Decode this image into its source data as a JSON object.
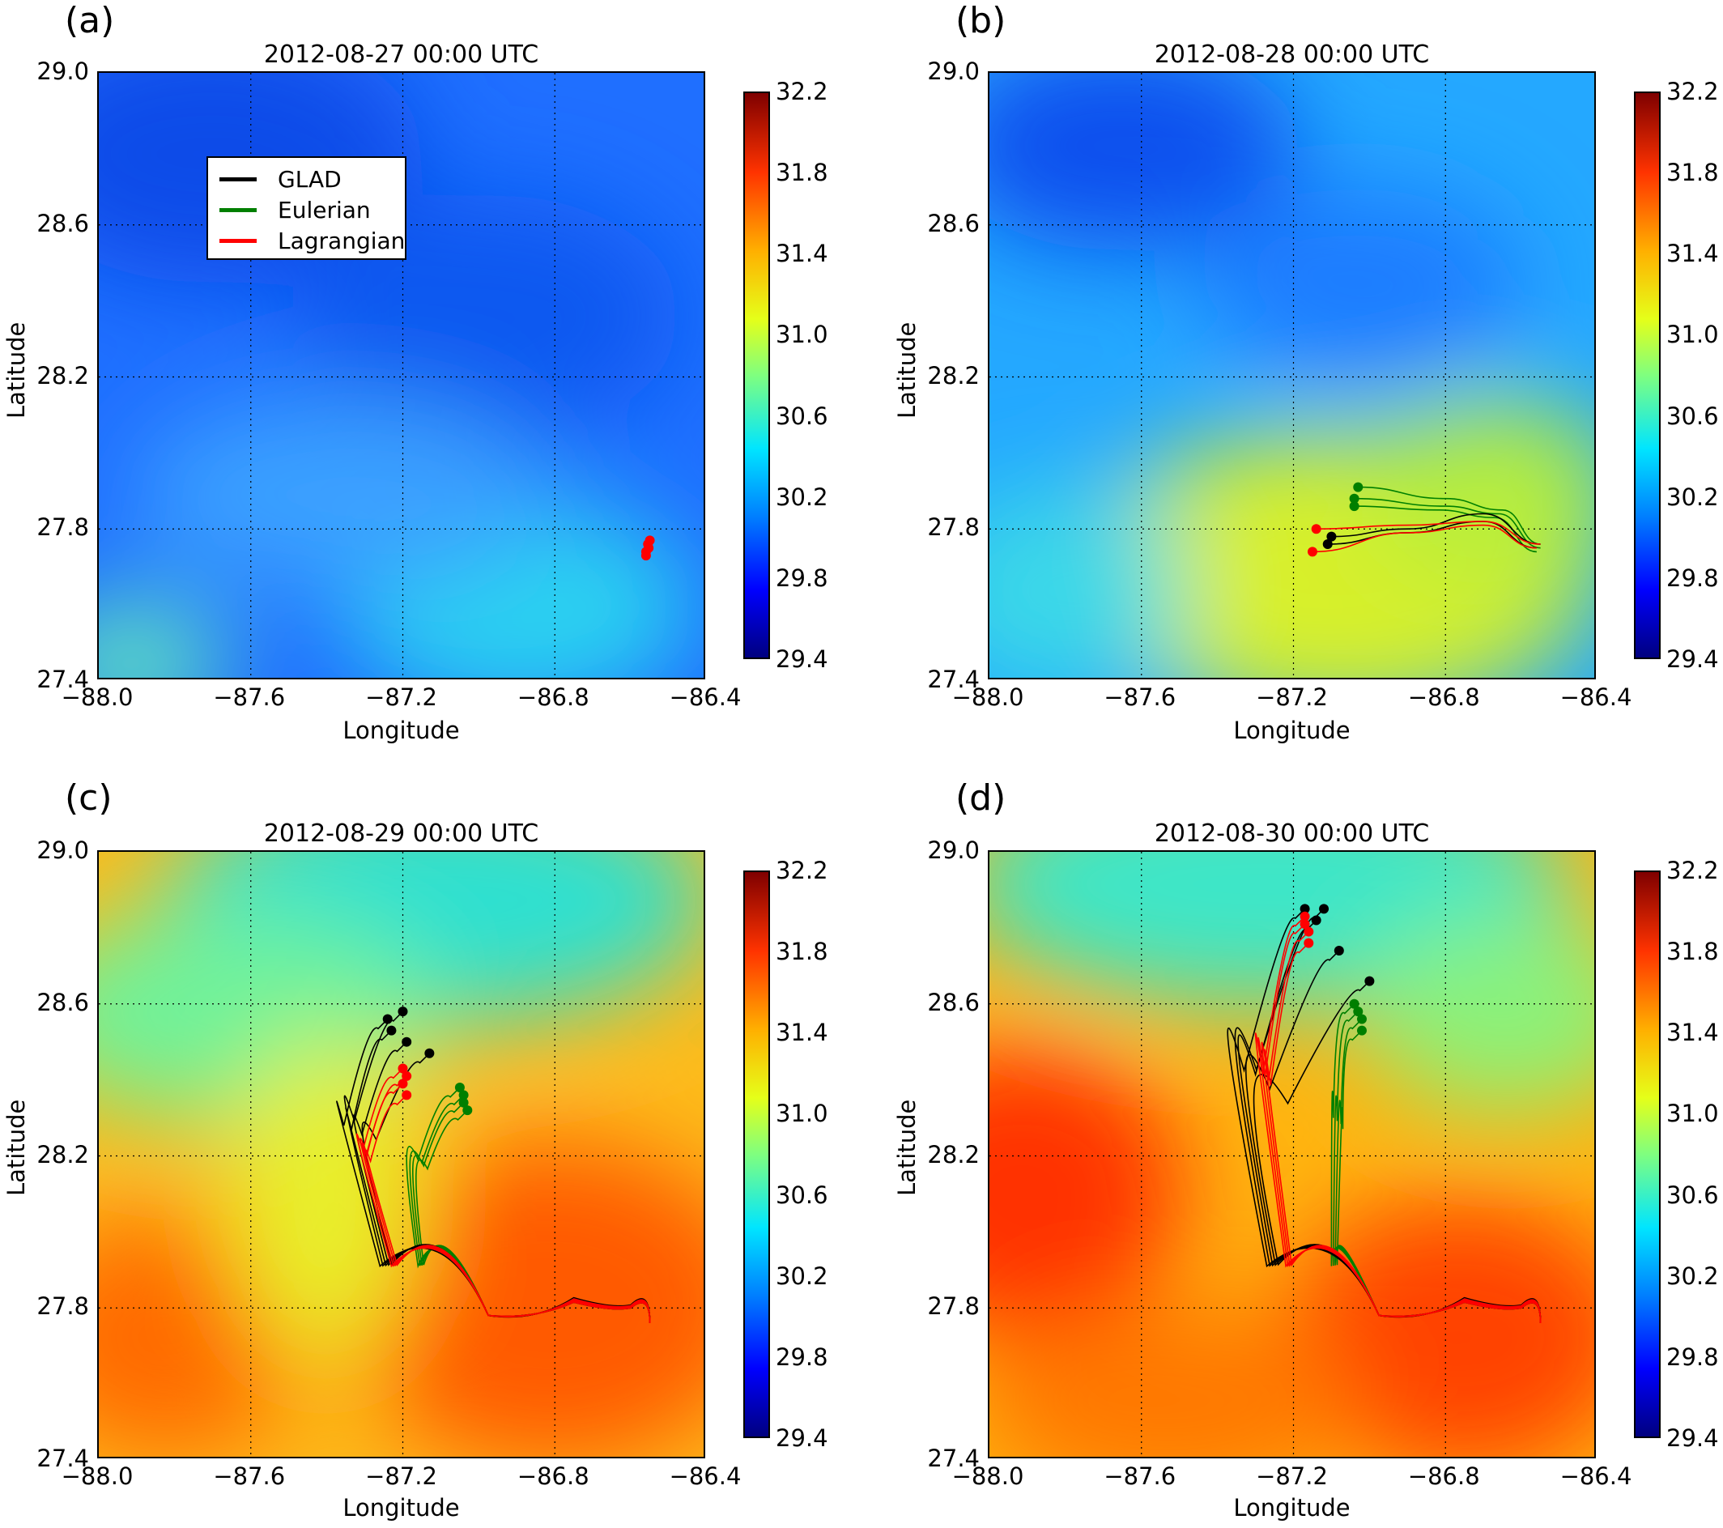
{
  "colorbar_ticks": [
    "32.2",
    "31.8",
    "31.4",
    "31.0",
    "30.6",
    "30.2",
    "29.8",
    "29.4"
  ],
  "legend": {
    "glad": "GLAD",
    "eulerian": "Eulerian",
    "lagrangian": "Lagrangian",
    "colors": {
      "glad": "#000000",
      "eulerian": "#007f00",
      "lagrangian": "#ff0000"
    }
  },
  "chart_data": [
    {
      "type": "heatmap",
      "panel_label": "(a)",
      "title": "2012-08-27 00:00 UTC",
      "xlabel": "Longitude",
      "ylabel": "Latitude",
      "xlim": [
        -88.0,
        -86.4
      ],
      "ylim": [
        27.4,
        29.0
      ],
      "xticks": [
        "−88.0",
        "−87.6",
        "−87.2",
        "−86.8",
        "−86.4"
      ],
      "yticks": [
        "29.0",
        "28.6",
        "28.2",
        "27.8",
        "27.4"
      ],
      "colorbar_range": [
        29.4,
        32.2
      ],
      "grid": true,
      "legend_position": "top-left",
      "trajectories": {
        "glad": [],
        "eulerian": [],
        "lagrangian_endpoints": [
          [
            -86.56,
            27.74
          ],
          [
            -86.555,
            27.76
          ],
          [
            -86.55,
            27.77
          ],
          [
            -86.56,
            27.73
          ],
          [
            -86.553,
            27.75
          ]
        ]
      }
    },
    {
      "type": "heatmap",
      "panel_label": "(b)",
      "title": "2012-08-28 00:00 UTC",
      "xlabel": "Longitude",
      "ylabel": "Latitude",
      "xlim": [
        -88.0,
        -86.4
      ],
      "ylim": [
        27.4,
        29.0
      ],
      "xticks": [
        "−88.0",
        "−87.6",
        "−87.2",
        "−86.8",
        "−86.4"
      ],
      "yticks": [
        "29.0",
        "28.6",
        "28.2",
        "27.8",
        "27.4"
      ],
      "colorbar_range": [
        29.4,
        32.2
      ],
      "grid": true,
      "trajectories": {
        "glad": [
          [
            [
              -86.55,
              27.76
            ],
            [
              -86.7,
              27.84
            ],
            [
              -86.9,
              27.8
            ],
            [
              -87.1,
              27.78
            ]
          ],
          [
            [
              -86.56,
              27.75
            ],
            [
              -86.7,
              27.82
            ],
            [
              -86.9,
              27.79
            ],
            [
              -87.11,
              27.76
            ]
          ]
        ],
        "eulerian": [
          [
            [
              -86.55,
              27.76
            ],
            [
              -86.65,
              27.85
            ],
            [
              -86.8,
              27.88
            ],
            [
              -87.03,
              27.91
            ]
          ],
          [
            [
              -86.55,
              27.75
            ],
            [
              -86.66,
              27.84
            ],
            [
              -86.8,
              27.86
            ],
            [
              -87.04,
              27.88
            ]
          ],
          [
            [
              -86.56,
              27.74
            ],
            [
              -86.67,
              27.83
            ],
            [
              -86.82,
              27.85
            ],
            [
              -87.04,
              27.86
            ]
          ]
        ],
        "lagrangian": [
          [
            [
              -86.55,
              27.76
            ],
            [
              -86.7,
              27.82
            ],
            [
              -86.9,
              27.81
            ],
            [
              -87.14,
              27.8
            ]
          ],
          [
            [
              -86.56,
              27.75
            ],
            [
              -86.7,
              27.81
            ],
            [
              -86.9,
              27.79
            ],
            [
              -87.15,
              27.74
            ]
          ]
        ]
      }
    },
    {
      "type": "heatmap",
      "panel_label": "(c)",
      "title": "2012-08-29 00:00 UTC",
      "xlabel": "Longitude",
      "ylabel": "Latitude",
      "xlim": [
        -88.0,
        -86.4
      ],
      "ylim": [
        27.4,
        29.0
      ],
      "xticks": [
        "−88.0",
        "−87.6",
        "−87.2",
        "−86.8",
        "−86.4"
      ],
      "yticks": [
        "29.0",
        "28.6",
        "28.2",
        "27.8",
        "27.4"
      ],
      "colorbar_range": [
        29.4,
        32.2
      ],
      "grid": true,
      "trajectories": {
        "glad_endpoints": [
          [
            -87.24,
            28.56
          ],
          [
            -87.2,
            28.58
          ],
          [
            -87.23,
            28.53
          ],
          [
            -87.19,
            28.5
          ],
          [
            -87.13,
            28.47
          ]
        ],
        "eulerian_endpoints": [
          [
            -87.05,
            28.38
          ],
          [
            -87.04,
            28.36
          ],
          [
            -87.04,
            28.34
          ],
          [
            -87.03,
            28.32
          ]
        ],
        "lagrangian_endpoints": [
          [
            -87.2,
            28.43
          ],
          [
            -87.19,
            28.41
          ],
          [
            -87.2,
            28.39
          ],
          [
            -87.19,
            28.36
          ]
        ]
      }
    },
    {
      "type": "heatmap",
      "panel_label": "(d)",
      "title": "2012-08-30 00:00 UTC",
      "xlabel": "Longitude",
      "ylabel": "Latitude",
      "xlim": [
        -88.0,
        -86.4
      ],
      "ylim": [
        27.4,
        29.0
      ],
      "xticks": [
        "−88.0",
        "−87.6",
        "−87.2",
        "−86.8",
        "−86.4"
      ],
      "yticks": [
        "29.0",
        "28.6",
        "28.2",
        "27.8",
        "27.4"
      ],
      "colorbar_range": [
        29.4,
        32.2
      ],
      "grid": true,
      "trajectories": {
        "glad_endpoints": [
          [
            -87.17,
            28.85
          ],
          [
            -87.12,
            28.85
          ],
          [
            -87.14,
            28.82
          ],
          [
            -87.08,
            28.74
          ],
          [
            -87.0,
            28.66
          ]
        ],
        "eulerian_endpoints": [
          [
            -87.04,
            28.6
          ],
          [
            -87.03,
            28.58
          ],
          [
            -87.02,
            28.56
          ],
          [
            -87.02,
            28.53
          ]
        ],
        "lagrangian_endpoints": [
          [
            -87.17,
            28.83
          ],
          [
            -87.17,
            28.81
          ],
          [
            -87.16,
            28.79
          ],
          [
            -87.16,
            28.76
          ]
        ]
      }
    }
  ]
}
